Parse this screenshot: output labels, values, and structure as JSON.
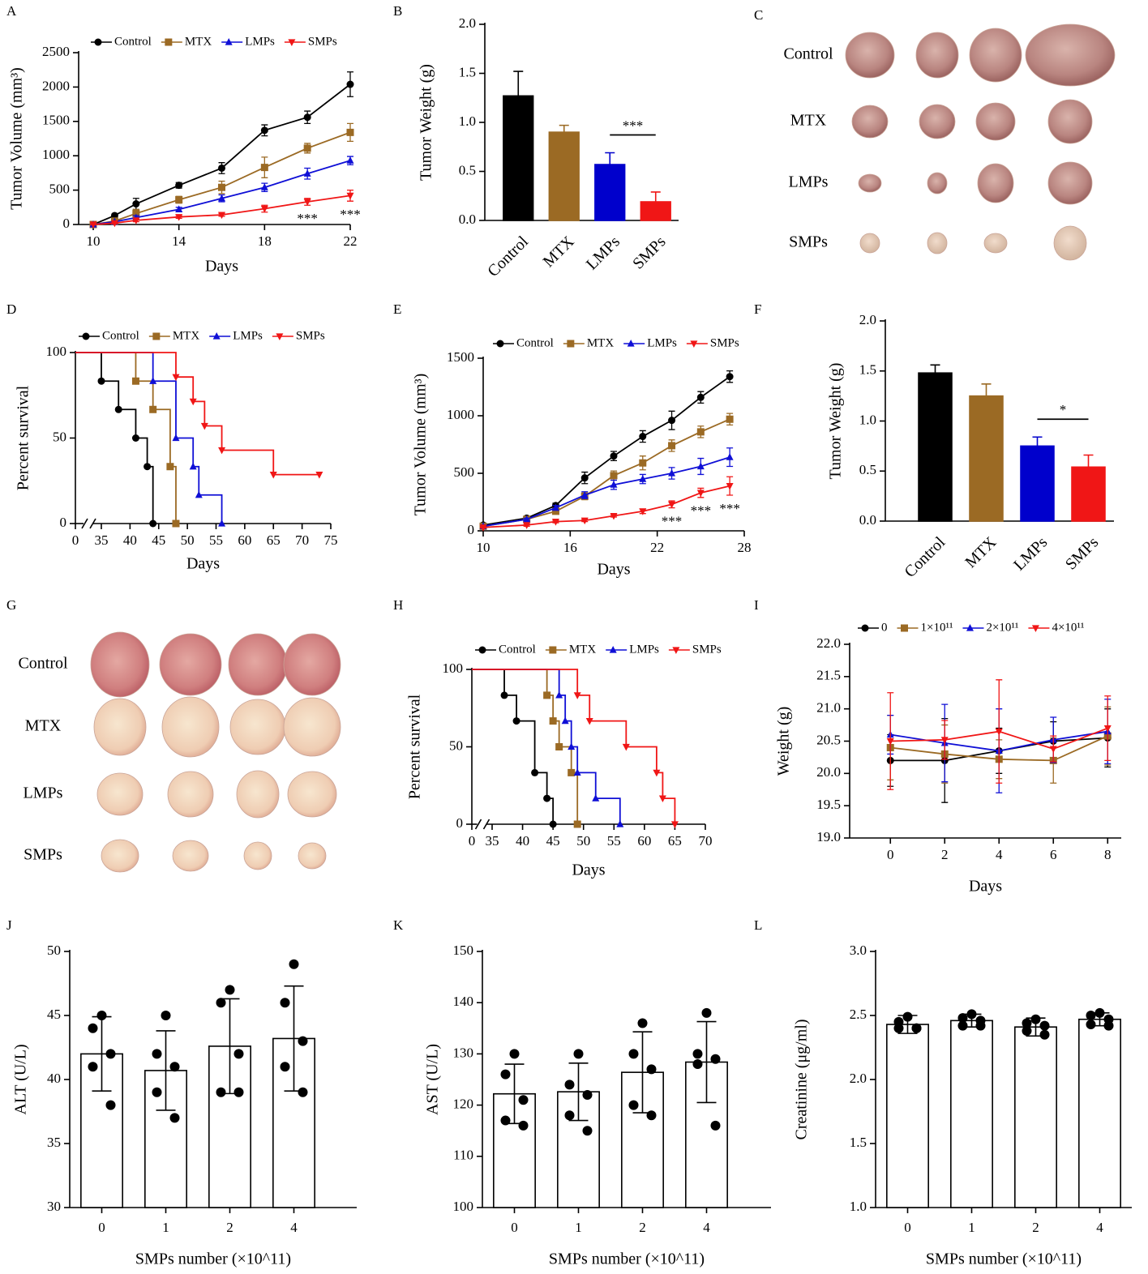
{
  "photo_panels": [
    {
      "panel": "C",
      "rows": [
        "Control",
        "MTX",
        "LMPs",
        "SMPs"
      ]
    },
    {
      "panel": "G",
      "rows": [
        "Control",
        "MTX",
        "LMPs",
        "SMPs"
      ]
    }
  ],
  "chart_data": [
    {
      "panel": "A",
      "type": "line",
      "xlabel": "Days",
      "ylabel": "Tumor Volume (mm³)",
      "x": [
        10,
        11,
        12,
        14,
        16,
        18,
        20,
        22
      ],
      "xlim": [
        10,
        22
      ],
      "xticks": [
        10,
        14,
        18,
        22
      ],
      "ylim": [
        0,
        2500
      ],
      "yticks": [
        0,
        500,
        1000,
        1500,
        2000,
        2500
      ],
      "series": [
        {
          "name": "Control",
          "color": "#000000",
          "marker": "circle",
          "values": [
            0,
            130,
            300,
            570,
            820,
            1370,
            1560,
            2040
          ],
          "errors": [
            0,
            20,
            80,
            40,
            80,
            80,
            90,
            180
          ]
        },
        {
          "name": "MTX",
          "color": "#9b6a24",
          "marker": "square",
          "values": [
            0,
            50,
            160,
            360,
            540,
            830,
            1110,
            1340
          ],
          "errors": [
            0,
            20,
            60,
            50,
            90,
            150,
            70,
            130
          ]
        },
        {
          "name": "LMPs",
          "color": "#0f0fd6",
          "marker": "triangle",
          "values": [
            0,
            40,
            100,
            220,
            380,
            540,
            740,
            930
          ],
          "errors": [
            0,
            10,
            30,
            30,
            50,
            60,
            80,
            60
          ]
        },
        {
          "name": "SMPs",
          "color": "#f01616",
          "marker": "triangle-down",
          "values": [
            0,
            20,
            60,
            110,
            140,
            230,
            330,
            420
          ],
          "errors": [
            0,
            10,
            20,
            20,
            20,
            50,
            50,
            80
          ]
        }
      ],
      "annotations": [
        {
          "text": "***",
          "x": 20
        },
        {
          "text": "***",
          "x": 22
        }
      ]
    },
    {
      "panel": "B",
      "type": "bar",
      "ylabel": "Tumor Weight (g)",
      "error_style": "upper",
      "categories": [
        "Control",
        "MTX",
        "LMPs",
        "SMPs"
      ],
      "values": [
        1.27,
        0.9,
        0.57,
        0.19
      ],
      "errors": [
        0.25,
        0.07,
        0.12,
        0.1
      ],
      "colors": [
        "#000000",
        "#9b6a24",
        "#0000cc",
        "#f01616"
      ],
      "ylim": [
        0,
        2
      ],
      "yticks": [
        {
          "value": 0,
          "label": "0.0"
        },
        0.5,
        {
          "value": 1,
          "label": "1.0"
        },
        1.5,
        {
          "value": 2,
          "label": "2.0"
        }
      ],
      "significance": {
        "between": [
          "LMPs",
          "SMPs"
        ],
        "label": "***"
      }
    },
    {
      "panel": "D",
      "type": "survival",
      "xlabel": "Days",
      "ylabel": "Percent survival",
      "xlim": [
        0,
        75
      ],
      "axis_break": [
        0,
        35
      ],
      "xticks": [
        0,
        35,
        40,
        45,
        50,
        55,
        60,
        65,
        70,
        75
      ],
      "ylim": [
        0,
        100
      ],
      "yticks": [
        0,
        50,
        100
      ],
      "series": [
        {
          "name": "Control",
          "color": "#000000",
          "marker": "circle",
          "x": [
            0,
            35,
            38,
            41,
            43,
            44
          ],
          "values": [
            100,
            83.3,
            66.7,
            50,
            33.3,
            0
          ]
        },
        {
          "name": "MTX",
          "color": "#9b6a24",
          "marker": "square",
          "x": [
            0,
            41,
            44,
            47,
            48
          ],
          "values": [
            100,
            83.3,
            66.7,
            33.3,
            0
          ]
        },
        {
          "name": "LMPs",
          "color": "#0f0fd6",
          "marker": "triangle",
          "x": [
            0,
            44,
            48,
            51,
            52,
            56
          ],
          "values": [
            100,
            83.3,
            50,
            33.3,
            16.7,
            0
          ]
        },
        {
          "name": "SMPs",
          "color": "#f01616",
          "marker": "triangle-down",
          "x": [
            0,
            48,
            51,
            53,
            56,
            65,
            73
          ],
          "values": [
            100,
            85.7,
            71.4,
            57.1,
            42.9,
            28.6,
            28.6
          ]
        }
      ]
    },
    {
      "panel": "E",
      "type": "line",
      "xlabel": "Days",
      "ylabel": "Tumor Volume (mm³)",
      "x": [
        10,
        13,
        15,
        17,
        19,
        21,
        23,
        25,
        27
      ],
      "xlim": [
        10,
        28
      ],
      "xticks": [
        10,
        16,
        22,
        28
      ],
      "ylim": [
        0,
        1500
      ],
      "yticks": [
        0,
        500,
        1000,
        1500
      ],
      "series": [
        {
          "name": "Control",
          "color": "#000000",
          "marker": "circle",
          "values": [
            50,
            110,
            220,
            460,
            650,
            820,
            960,
            1160,
            1340
          ],
          "errors": [
            10,
            15,
            20,
            50,
            40,
            50,
            80,
            50,
            50
          ]
        },
        {
          "name": "MTX",
          "color": "#9b6a24",
          "marker": "square",
          "values": [
            40,
            100,
            170,
            300,
            480,
            590,
            740,
            860,
            970
          ],
          "errors": [
            10,
            10,
            20,
            30,
            40,
            60,
            50,
            50,
            50
          ]
        },
        {
          "name": "LMPs",
          "color": "#0f0fd6",
          "marker": "triangle",
          "values": [
            40,
            100,
            200,
            310,
            400,
            450,
            500,
            560,
            640
          ],
          "errors": [
            10,
            10,
            20,
            30,
            40,
            40,
            50,
            70,
            80
          ]
        },
        {
          "name": "SMPs",
          "color": "#f01616",
          "marker": "triangle-down",
          "values": [
            30,
            50,
            80,
            90,
            130,
            170,
            230,
            330,
            390
          ],
          "errors": [
            5,
            10,
            10,
            10,
            10,
            20,
            30,
            40,
            80
          ]
        }
      ],
      "annotations": [
        {
          "text": "***",
          "x": 23
        },
        {
          "text": "***",
          "x": 25
        },
        {
          "text": "***",
          "x": 27
        }
      ]
    },
    {
      "panel": "F",
      "type": "bar",
      "ylabel": "Tumor Weight (g)",
      "error_style": "upper",
      "categories": [
        "Control",
        "MTX",
        "LMPs",
        "SMPs"
      ],
      "values": [
        1.48,
        1.25,
        0.75,
        0.54
      ],
      "errors": [
        0.08,
        0.12,
        0.09,
        0.12
      ],
      "colors": [
        "#000000",
        "#9b6a24",
        "#0000cc",
        "#f01616"
      ],
      "ylim": [
        0,
        2
      ],
      "yticks": [
        {
          "value": 0,
          "label": "0.0"
        },
        0.5,
        {
          "value": 1,
          "label": "1.0"
        },
        1.5,
        {
          "value": 2,
          "label": "2.0"
        }
      ],
      "significance": {
        "between": [
          "LMPs",
          "SMPs"
        ],
        "label": "*"
      }
    },
    {
      "panel": "H",
      "type": "survival",
      "xlabel": "Days",
      "ylabel": "Percent survival",
      "xlim": [
        0,
        70
      ],
      "axis_break": [
        0,
        35
      ],
      "xticks": [
        0,
        35,
        40,
        45,
        50,
        55,
        60,
        65,
        70
      ],
      "ylim": [
        0,
        100
      ],
      "yticks": [
        0,
        50,
        100
      ],
      "series": [
        {
          "name": "Control",
          "color": "#000000",
          "marker": "circle",
          "x": [
            0,
            37,
            39,
            42,
            44,
            45
          ],
          "values": [
            100,
            83.3,
            66.7,
            33.3,
            16.7,
            0
          ]
        },
        {
          "name": "MTX",
          "color": "#9b6a24",
          "marker": "square",
          "x": [
            0,
            44,
            45,
            46,
            48,
            49
          ],
          "values": [
            100,
            83.3,
            66.7,
            50,
            33.3,
            0
          ]
        },
        {
          "name": "LMPs",
          "color": "#0f0fd6",
          "marker": "triangle",
          "x": [
            0,
            46,
            47,
            48,
            49,
            52,
            56
          ],
          "values": [
            100,
            83.3,
            66.7,
            50,
            33.3,
            16.7,
            0
          ]
        },
        {
          "name": "SMPs",
          "color": "#f01616",
          "marker": "triangle-down",
          "x": [
            0,
            49,
            51,
            57,
            62,
            63,
            65
          ],
          "values": [
            100,
            83.3,
            66.7,
            50,
            33.3,
            16.7,
            0
          ]
        }
      ]
    },
    {
      "panel": "I",
      "type": "line",
      "xlabel": "Days",
      "ylabel": "Weight (g)",
      "x": [
        0,
        2,
        4,
        6,
        8
      ],
      "xlim": [
        -1.5,
        8.5
      ],
      "xticks": [
        0,
        2,
        4,
        6,
        8
      ],
      "ylim": [
        19,
        22
      ],
      "yticks": [
        {
          "value": 19,
          "label": "19.0"
        },
        19.5,
        {
          "value": 20,
          "label": "20.0"
        },
        20.5,
        {
          "value": 21,
          "label": "21.0"
        },
        21.5,
        {
          "value": 22,
          "label": "22.0"
        }
      ],
      "series": [
        {
          "name": "0",
          "color": "#000000",
          "marker": "circle",
          "values": [
            20.2,
            20.2,
            20.35,
            20.5,
            20.55
          ],
          "errors": [
            0.4,
            0.65,
            0.35,
            0.3,
            0.45
          ]
        },
        {
          "name": "1×10¹¹",
          "color": "#9b6a24",
          "marker": "square",
          "values": [
            20.4,
            20.3,
            20.22,
            20.2,
            20.58
          ],
          "errors": [
            0.5,
            0.45,
            0.3,
            0.35,
            0.45
          ]
        },
        {
          "name": "2×10¹¹",
          "color": "#0f0fd6",
          "marker": "triangle",
          "values": [
            20.6,
            20.47,
            20.35,
            20.52,
            20.65
          ],
          "errors": [
            0.3,
            0.6,
            0.65,
            0.35,
            0.5
          ]
        },
        {
          "name": "4×10¹¹",
          "color": "#f01616",
          "marker": "triangle-down",
          "values": [
            20.5,
            20.52,
            20.65,
            20.38,
            20.7
          ],
          "errors": [
            0.75,
            0.3,
            0.8,
            0.2,
            0.5
          ]
        }
      ]
    },
    {
      "panel": "J",
      "type": "bar",
      "xlabel": "SMPs number (×10^11)",
      "ylabel": "ALT (U/L)",
      "error_style": "both",
      "categories": [
        "0",
        "1",
        "2",
        "4"
      ],
      "values": [
        42,
        40.7,
        42.6,
        43.2
      ],
      "errors": [
        2.9,
        3.1,
        3.7,
        4.1
      ],
      "points": [
        [
          45,
          44,
          42,
          41,
          38
        ],
        [
          45,
          42,
          41,
          39,
          37
        ],
        [
          47,
          46,
          42,
          39,
          39
        ],
        [
          49,
          46,
          43,
          41,
          39
        ]
      ],
      "colors": [
        "#ffffff",
        "#ffffff",
        "#ffffff",
        "#ffffff"
      ],
      "ylim": [
        30,
        50
      ],
      "yticks": [
        30,
        35,
        40,
        45,
        50
      ]
    },
    {
      "panel": "K",
      "type": "bar",
      "xlabel": "SMPs number (×10^11)",
      "ylabel": "AST (U/L)",
      "error_style": "both",
      "categories": [
        "0",
        "1",
        "2",
        "4"
      ],
      "values": [
        122.2,
        122.6,
        126.4,
        128.4
      ],
      "errors": [
        5.8,
        5.6,
        7.9,
        7.9
      ],
      "points": [
        [
          130,
          126,
          121,
          117,
          116
        ],
        [
          130,
          124,
          122,
          118,
          115
        ],
        [
          136,
          130,
          127,
          120,
          118
        ],
        [
          138,
          130,
          129,
          128,
          116
        ]
      ],
      "colors": [
        "#ffffff",
        "#ffffff",
        "#ffffff",
        "#ffffff"
      ],
      "ylim": [
        100,
        150
      ],
      "yticks": [
        100,
        110,
        120,
        130,
        140,
        150
      ]
    },
    {
      "panel": "L",
      "type": "bar",
      "xlabel": "SMPs number (×10^11)",
      "ylabel": "Creatinine (μg/ml)",
      "error_style": "both",
      "categories": [
        "0",
        "1",
        "2",
        "4"
      ],
      "values": [
        2.43,
        2.46,
        2.41,
        2.47
      ],
      "errors": [
        0.07,
        0.05,
        0.07,
        0.05
      ],
      "points": [
        [
          2.49,
          2.45,
          2.4,
          2.4,
          2.4
        ],
        [
          2.51,
          2.48,
          2.46,
          2.42,
          2.42
        ],
        [
          2.47,
          2.44,
          2.42,
          2.38,
          2.35
        ],
        [
          2.52,
          2.5,
          2.47,
          2.43,
          2.42
        ]
      ],
      "colors": [
        "#ffffff",
        "#ffffff",
        "#ffffff",
        "#ffffff"
      ],
      "ylim": [
        1,
        3
      ],
      "yticks": [
        {
          "value": 1,
          "label": "1.0"
        },
        1.5,
        {
          "value": 2,
          "label": "2.0"
        },
        2.5,
        {
          "value": 3,
          "label": "3.0"
        }
      ]
    }
  ]
}
